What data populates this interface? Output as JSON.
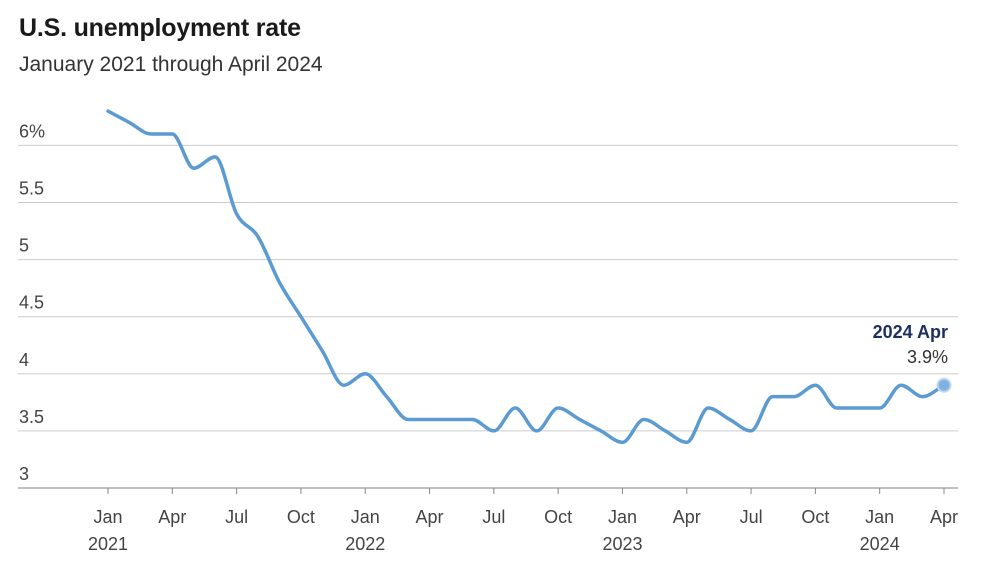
{
  "chart_data": {
    "type": "line",
    "title": "U.S. unemployment rate",
    "subtitle": "January 2021 through April 2024",
    "ylim": [
      3,
      6.3
    ],
    "yticks": [
      {
        "value": 3,
        "label": "3"
      },
      {
        "value": 3.5,
        "label": "3.5"
      },
      {
        "value": 4,
        "label": "4"
      },
      {
        "value": 4.5,
        "label": "4.5"
      },
      {
        "value": 5,
        "label": "5"
      },
      {
        "value": 5.5,
        "label": "5.5"
      },
      {
        "value": 6,
        "label": "6%"
      }
    ],
    "xticks": [
      {
        "date": "2021-01",
        "label": "Jan",
        "year": "2021"
      },
      {
        "date": "2021-04",
        "label": "Apr",
        "year": ""
      },
      {
        "date": "2021-07",
        "label": "Jul",
        "year": ""
      },
      {
        "date": "2021-10",
        "label": "Oct",
        "year": ""
      },
      {
        "date": "2022-01",
        "label": "Jan",
        "year": "2022"
      },
      {
        "date": "2022-04",
        "label": "Apr",
        "year": ""
      },
      {
        "date": "2022-07",
        "label": "Jul",
        "year": ""
      },
      {
        "date": "2022-10",
        "label": "Oct",
        "year": ""
      },
      {
        "date": "2023-01",
        "label": "Jan",
        "year": "2023"
      },
      {
        "date": "2023-04",
        "label": "Apr",
        "year": ""
      },
      {
        "date": "2023-07",
        "label": "Jul",
        "year": ""
      },
      {
        "date": "2023-10",
        "label": "Oct",
        "year": ""
      },
      {
        "date": "2024-01",
        "label": "Jan",
        "year": "2024"
      },
      {
        "date": "2024-04",
        "label": "Apr",
        "year": ""
      }
    ],
    "grid": true,
    "line_color": "#5b9bd2",
    "gridline_color": "#cccccc",
    "series": [
      {
        "x": [
          "2021-01",
          "2021-02",
          "2021-03",
          "2021-04",
          "2021-05",
          "2021-06",
          "2021-07",
          "2021-08",
          "2021-09",
          "2021-10",
          "2021-11",
          "2021-12",
          "2022-01",
          "2022-02",
          "2022-03",
          "2022-04",
          "2022-05",
          "2022-06",
          "2022-07",
          "2022-08",
          "2022-09",
          "2022-10",
          "2022-11",
          "2022-12",
          "2023-01",
          "2023-02",
          "2023-03",
          "2023-04",
          "2023-05",
          "2023-06",
          "2023-07",
          "2023-08",
          "2023-09",
          "2023-10",
          "2023-11",
          "2023-12",
          "2024-01",
          "2024-02",
          "2024-03",
          "2024-04"
        ],
        "values": [
          6.3,
          6.2,
          6.1,
          6.1,
          5.8,
          5.9,
          5.4,
          5.2,
          4.8,
          4.5,
          4.2,
          3.9,
          4.0,
          3.8,
          3.6,
          3.6,
          3.6,
          3.6,
          3.5,
          3.7,
          3.5,
          3.7,
          3.6,
          3.5,
          3.4,
          3.6,
          3.5,
          3.4,
          3.7,
          3.6,
          3.5,
          3.8,
          3.8,
          3.9,
          3.7,
          3.7,
          3.7,
          3.9,
          3.8,
          3.9
        ]
      }
    ],
    "annotation": {
      "date": "2024-04",
      "value": 3.9,
      "title": "2024 Apr",
      "value_label": "3.9%"
    }
  }
}
